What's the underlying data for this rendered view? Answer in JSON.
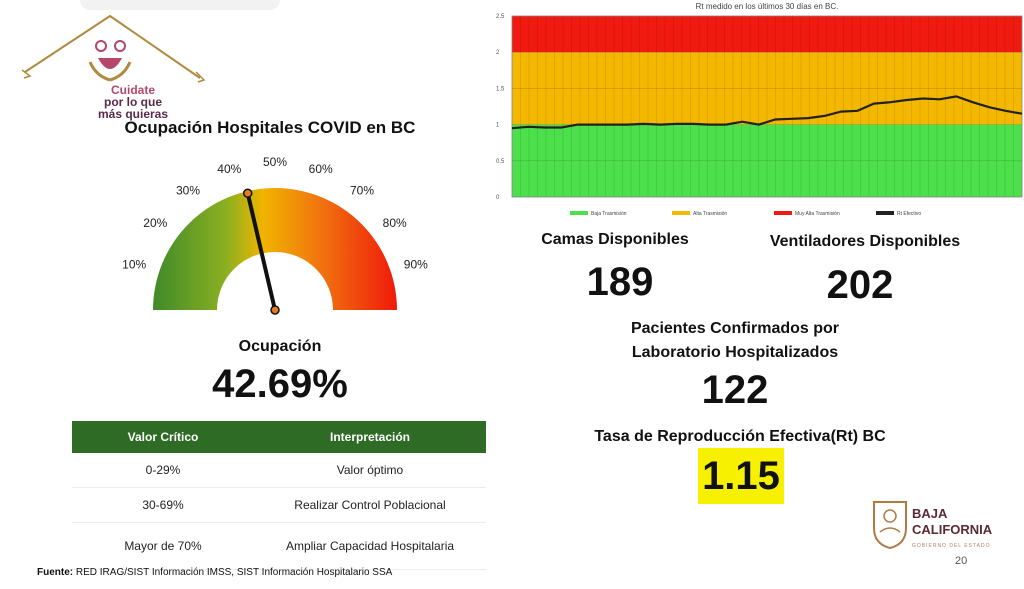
{
  "branding": {
    "campaign_line1": "Cuidate",
    "campaign_line2": "por lo que",
    "campaign_line3": "más quieras"
  },
  "gauge": {
    "title": "Ocupación Hospitales COVID en BC",
    "tick_labels": [
      "10%",
      "20%",
      "30%",
      "40%",
      "50%",
      "60%",
      "70%",
      "80%",
      "90%"
    ],
    "occupancy_label": "Ocupación",
    "occupancy_value": "42.69%",
    "occupancy_fraction": 0.4269
  },
  "criteria_table": {
    "headers": [
      "Valor Crítico",
      "Interpretación"
    ],
    "rows": [
      [
        "0-29%",
        "Valor óptimo"
      ],
      [
        "30-69%",
        "Realizar Control Poblacional"
      ],
      [
        "Mayor de 70%",
        "Ampliar Capacidad Hospitalaria"
      ]
    ],
    "header_color": "#2e6b25"
  },
  "source": {
    "label": "Fuente:",
    "text": " RED IRAG/SIST Información IMSS, SIST Información Hospitalario SSA"
  },
  "chart_data": {
    "type": "line",
    "title": "Rt medido en los últimos 30 días en BC.",
    "ylim": [
      0,
      2.5
    ],
    "yticks": [
      "0",
      "0.5",
      "1",
      "1.5",
      "2",
      "2.5"
    ],
    "bands": [
      {
        "name": "Baja Trasmisión",
        "from": 0,
        "to": 1,
        "color": "#4ce04c"
      },
      {
        "name": "Alta Trasmisión",
        "from": 1,
        "to": 2,
        "color": "#f5b800"
      },
      {
        "name": "Muy Alta Trasmisión",
        "from": 2,
        "to": 2.5,
        "color": "#f01a10"
      }
    ],
    "series": [
      {
        "name": "Rt Efectivo",
        "color": "#222222",
        "values": [
          0.95,
          0.97,
          0.96,
          0.96,
          1.0,
          1.0,
          1.0,
          1.0,
          1.01,
          1.0,
          1.01,
          1.01,
          1.0,
          1.0,
          1.04,
          1.0,
          1.07,
          1.08,
          1.09,
          1.12,
          1.18,
          1.19,
          1.29,
          1.31,
          1.34,
          1.36,
          1.35,
          1.39,
          1.31,
          1.24,
          1.19,
          1.15
        ]
      }
    ],
    "grid": true,
    "legend_position": "bottom"
  },
  "stats": {
    "camas_label": "Camas Disponibles",
    "camas_value": "189",
    "ventiladores_label": "Ventiladores Disponibles",
    "ventiladores_value": "202",
    "pacientes_label_line1": "Pacientes Confirmados por",
    "pacientes_label_line2": "Laboratorio Hospitalizados",
    "pacientes_value": "122",
    "rt_label": "Tasa de Reproducción Efectiva(Rt) BC",
    "rt_value": "1.15",
    "rt_highlight_color": "#f7f000"
  },
  "footer": {
    "state_line1": "BAJA",
    "state_line2": "CALIFORNIA",
    "state_subtitle": "GOBIERNO DEL ESTADO",
    "page_number": "20"
  }
}
